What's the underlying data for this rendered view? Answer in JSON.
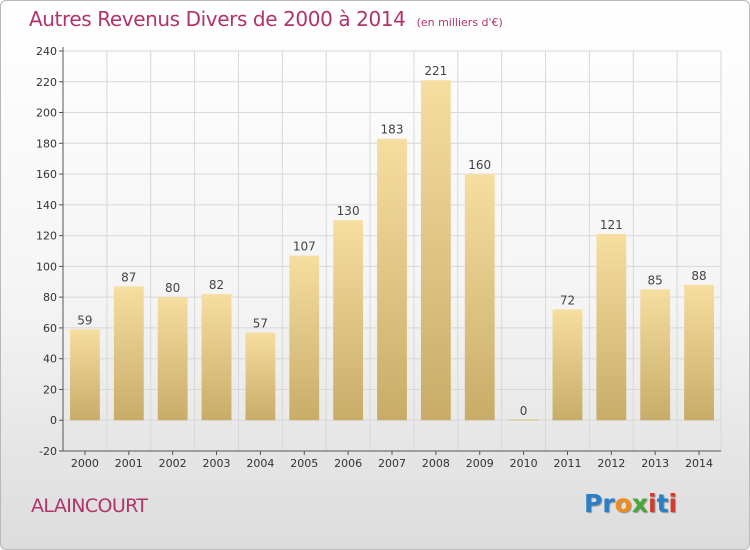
{
  "header": {
    "title": "Autres Revenus Divers de 2000 à 2014",
    "subtitle": "(en milliers d'€)"
  },
  "footer": {
    "commune": "ALAINCOURT",
    "logo_letters": [
      {
        "ch": "P",
        "color": "#2a7ec3"
      },
      {
        "ch": "r",
        "color": "#2a7ec3"
      },
      {
        "ch": "o",
        "color": "#f08c1e"
      },
      {
        "ch": "x",
        "color": "#4aa43a"
      },
      {
        "ch": "i",
        "color": "#d23c2c"
      },
      {
        "ch": "t",
        "color": "#2a7ec3"
      },
      {
        "ch": "i",
        "color": "#d23c2c"
      }
    ]
  },
  "colors": {
    "title": "#b0336b",
    "bar_top": "#f6dea0",
    "bar_bottom": "#c8ac68",
    "grid": "#d8d8d8"
  },
  "chart_data": {
    "type": "bar",
    "title": "Autres Revenus Divers de 2000 à 2014",
    "subtitle": "(en milliers d'€)",
    "xlabel": "",
    "ylabel": "",
    "categories": [
      "2000",
      "2001",
      "2002",
      "2003",
      "2004",
      "2005",
      "2006",
      "2007",
      "2008",
      "2009",
      "2010",
      "2011",
      "2012",
      "2013",
      "2014"
    ],
    "values": [
      59,
      87,
      80,
      82,
      57,
      107,
      130,
      183,
      221,
      160,
      0,
      72,
      121,
      85,
      88
    ],
    "ylim": [
      -20,
      240
    ],
    "yticks": [
      -20,
      0,
      20,
      40,
      60,
      80,
      100,
      120,
      140,
      160,
      180,
      200,
      220,
      240
    ],
    "grid": true
  }
}
